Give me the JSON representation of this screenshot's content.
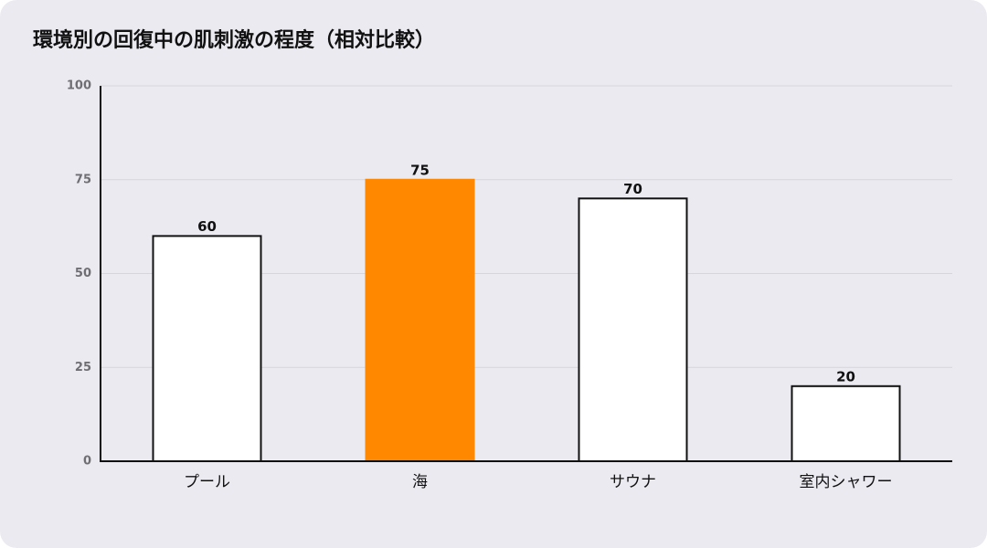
{
  "chart_data": {
    "type": "bar",
    "title": "環境別の回復中の肌刺激の程度（相対比較）",
    "categories": [
      "プール",
      "海",
      "サウナ",
      "室内シャワー"
    ],
    "values": [
      60,
      75,
      70,
      20
    ],
    "colors": [
      "#ffffff",
      "#ff8800",
      "#ffffff",
      "#ffffff"
    ],
    "edge_colors": [
      "#111111",
      "#ff8800",
      "#111111",
      "#111111"
    ],
    "ylim": [
      0,
      100
    ],
    "yticks": [
      0,
      25,
      50,
      75,
      100
    ],
    "grid": true
  }
}
